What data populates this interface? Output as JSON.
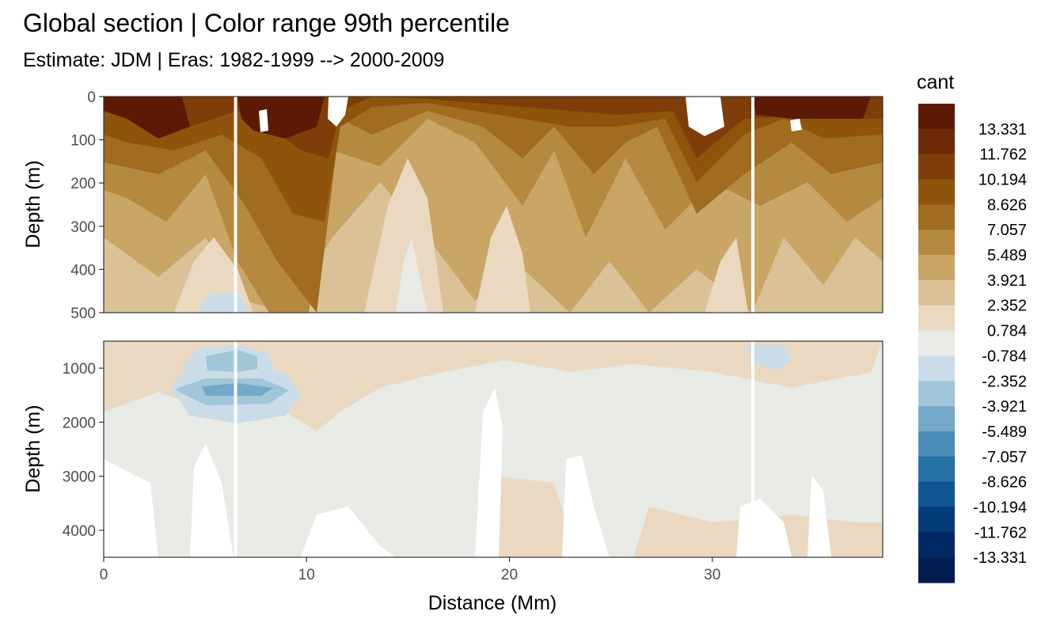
{
  "chart_data": {
    "type": "heatmap",
    "title": "Global section | Color range 99th percentile",
    "subtitle": "Estimate: JDM  | Eras: 1982-1999 --> 2000-2009",
    "xlabel": "Distance (Mm)",
    "ylabel": "Depth (m)",
    "x_ticks": [
      "0",
      "10",
      "20",
      "30"
    ],
    "xlim": [
      0,
      38.4
    ],
    "panels": [
      {
        "name": "upper",
        "ylim": [
          0,
          500
        ],
        "y_ticks": [
          "0",
          "100",
          "200",
          "300",
          "400",
          "500"
        ],
        "y_tick_values": [
          0,
          100,
          200,
          300,
          400,
          500
        ]
      },
      {
        "name": "lower",
        "ylim": [
          500,
          4500
        ],
        "y_ticks": [
          "1000",
          "2000",
          "3000",
          "4000"
        ],
        "y_tick_values": [
          1000,
          2000,
          3000,
          4000
        ]
      }
    ],
    "gap_lines_x": [
      6.5,
      32.0
    ],
    "grid": true,
    "legend": {
      "title": "cant",
      "position": "right",
      "labels": [
        "13.331",
        "11.762",
        "10.194",
        "8.626",
        "7.057",
        "5.489",
        "3.921",
        "2.352",
        "0.784",
        "-0.784",
        "-2.352",
        "-3.921",
        "-5.489",
        "-7.057",
        "-8.626",
        "-10.194",
        "-11.762",
        "-13.331"
      ],
      "colors": [
        "#5c1a05",
        "#6e2a07",
        "#7f3d09",
        "#8e540c",
        "#a06c1f",
        "#b5893f",
        "#c9a566",
        "#dbc296",
        "#ead9c0",
        "#e8eae6",
        "#c9dce8",
        "#a1c6d9",
        "#74a9c9",
        "#4a8db8",
        "#2671a5",
        "#0f5592",
        "#063b7b",
        "#022866",
        "#021c4f"
      ]
    }
  }
}
